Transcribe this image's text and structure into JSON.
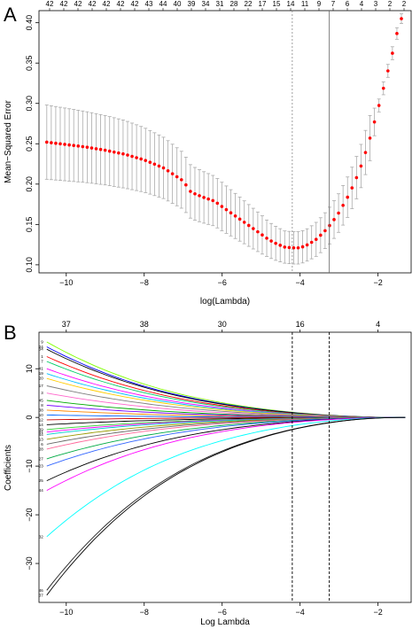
{
  "chart_data": [
    {
      "type": "scatter",
      "panel_label": "A",
      "xlabel": "log(Lambda)",
      "ylabel": "Mean−Squared Error",
      "xlim": [
        -10.7,
        -1.15
      ],
      "ylim": [
        0.09,
        0.415
      ],
      "x_ticks": [
        -10,
        -8,
        -6,
        -4,
        -2
      ],
      "x_tick_labels": [
        "−10",
        "−8",
        "−6",
        "−4",
        "−2"
      ],
      "y_ticks": [
        0.1,
        0.15,
        0.2,
        0.25,
        0.3,
        0.35,
        0.4
      ],
      "y_tick_labels": [
        "0.10",
        "0.15",
        "0.20",
        "0.25",
        "0.30",
        "0.35",
        "0.40"
      ],
      "top_axis_labels": [
        "42",
        "42",
        "42",
        "42",
        "42",
        "42",
        "42",
        "43",
        "44",
        "40",
        "39",
        "34",
        "31",
        "28",
        "22",
        "17",
        "15",
        "14",
        "11",
        "9",
        "7",
        "6",
        "4",
        "3",
        "2",
        "2"
      ],
      "top_axis_x": [
        -10.5,
        -10.05,
        -9.58,
        -9.12,
        -8.68,
        -8.22,
        -7.76,
        -7.32,
        -6.87,
        -6.42,
        -5.96,
        -5.52,
        -5.07,
        -4.62,
        -4.15,
        -3.72,
        -3.27,
        -2.83,
        -2.38,
        -1.93,
        -1.48,
        -1.25,
        -1.1,
        -1.02,
        -0.98,
        -0.95
      ],
      "vlines": [
        -4.2,
        -3.25
      ],
      "point_color": "#ff0000",
      "errorbar_color": "#aaaaaa",
      "cv_curve_x": [
        -10.5,
        -10,
        -9.5,
        -9,
        -8.5,
        -8,
        -7.5,
        -7,
        -6.8,
        -6.5,
        -6.2,
        -6,
        -5.5,
        -5,
        -4.8,
        -4.6,
        -4.4,
        -4.2,
        -4,
        -3.8,
        -3.6,
        -3.4,
        -3.2,
        -3,
        -2.8,
        -2.6,
        -2.4,
        -2.2,
        -2,
        -1.8,
        -1.6,
        -1.5,
        -1.4
      ],
      "cv_curve_y": [
        0.252,
        0.249,
        0.246,
        0.242,
        0.237,
        0.23,
        0.22,
        0.204,
        0.19,
        0.184,
        0.179,
        0.172,
        0.155,
        0.138,
        0.131,
        0.126,
        0.122,
        0.121,
        0.121,
        0.125,
        0.131,
        0.14,
        0.151,
        0.165,
        0.182,
        0.202,
        0.227,
        0.258,
        0.293,
        0.33,
        0.368,
        0.39,
        0.405
      ],
      "cv_error_half_width": [
        0.046,
        0.045,
        0.044,
        0.043,
        0.042,
        0.04,
        0.038,
        0.035,
        0.033,
        0.032,
        0.031,
        0.03,
        0.027,
        0.024,
        0.022,
        0.021,
        0.02,
        0.02,
        0.02,
        0.02,
        0.021,
        0.022,
        0.023,
        0.024,
        0.025,
        0.026,
        0.027,
        0.028,
        0.008,
        0.008,
        0.008,
        0.007,
        0.006
      ]
    },
    {
      "type": "line",
      "panel_label": "B",
      "xlabel": "Log Lambda",
      "ylabel": "Coefficients",
      "xlim": [
        -10.7,
        -1.15
      ],
      "ylim": [
        -38,
        17.5
      ],
      "x_ticks": [
        -10,
        -8,
        -6,
        -4,
        -2
      ],
      "x_tick_labels": [
        "−10",
        "−8",
        "−6",
        "−4",
        "−2"
      ],
      "y_ticks": [
        -30,
        -20,
        -10,
        0,
        10
      ],
      "y_tick_labels": [
        "−30",
        "−20",
        "−10",
        "0",
        "10"
      ],
      "top_axis_labels": [
        "37",
        "38",
        "30",
        "16",
        "4"
      ],
      "top_axis_x": [
        -10,
        -8,
        -6,
        -4,
        -2
      ],
      "vlines": [
        -4.2,
        -3.25
      ],
      "paths": [
        {
          "label": "9",
          "start": 15.5,
          "color": "#80ff00"
        },
        {
          "label": "24",
          "start": 14.5,
          "color": "#0000ff"
        },
        {
          "label": "34",
          "start": 14.0,
          "color": "#000000"
        },
        {
          "label": "1",
          "start": 12.5,
          "color": "#ff0000"
        },
        {
          "label": "7",
          "start": 11.5,
          "color": "#00cc66"
        },
        {
          "label": "41",
          "start": 10.0,
          "color": "#ff00ff"
        },
        {
          "label": "19",
          "start": 9.0,
          "color": "#00bfff"
        },
        {
          "label": "20",
          "start": 8.0,
          "color": "#ffcc00"
        },
        {
          "label": "17",
          "start": 6.5,
          "color": "#7f7f7f"
        },
        {
          "label": "3",
          "start": 5.0,
          "color": "#ff66cc"
        },
        {
          "label": "45",
          "start": 3.5,
          "color": "#00aa00"
        },
        {
          "label": "8",
          "start": 2.5,
          "color": "#7700ff"
        },
        {
          "label": "38",
          "start": 1.5,
          "color": "#ff8800"
        },
        {
          "label": "10",
          "start": 0.5,
          "color": "#0066ff"
        },
        {
          "label": "12",
          "start": -0.5,
          "color": "#cc0000"
        },
        {
          "label": "14",
          "start": -1.5,
          "color": "#000000"
        },
        {
          "label": "39",
          "start": -2.5,
          "color": "#33cc33"
        },
        {
          "label": "31",
          "start": -3.0,
          "color": "#ff00ff"
        },
        {
          "label": "44",
          "start": -3.5,
          "color": "#00cccc"
        },
        {
          "label": "13",
          "start": -4.5,
          "color": "#999900"
        },
        {
          "label": "6",
          "start": -5.5,
          "color": "#666666"
        },
        {
          "label": "28",
          "start": -6.5,
          "color": "#ff6699"
        },
        {
          "label": "27",
          "start": -8.5,
          "color": "#00aa44"
        },
        {
          "label": "23",
          "start": -10.0,
          "color": "#3366ff"
        },
        {
          "label": "25",
          "start": -13.0,
          "color": "#000000"
        },
        {
          "label": "44",
          "start": -15.0,
          "color": "#ff00ff"
        },
        {
          "label": "32",
          "start": -24.5,
          "color": "#00ffff"
        },
        {
          "label": "46",
          "start": -35.5,
          "color": "#222222"
        },
        {
          "label": "37",
          "start": -36.5,
          "color": "#000000"
        }
      ]
    }
  ]
}
